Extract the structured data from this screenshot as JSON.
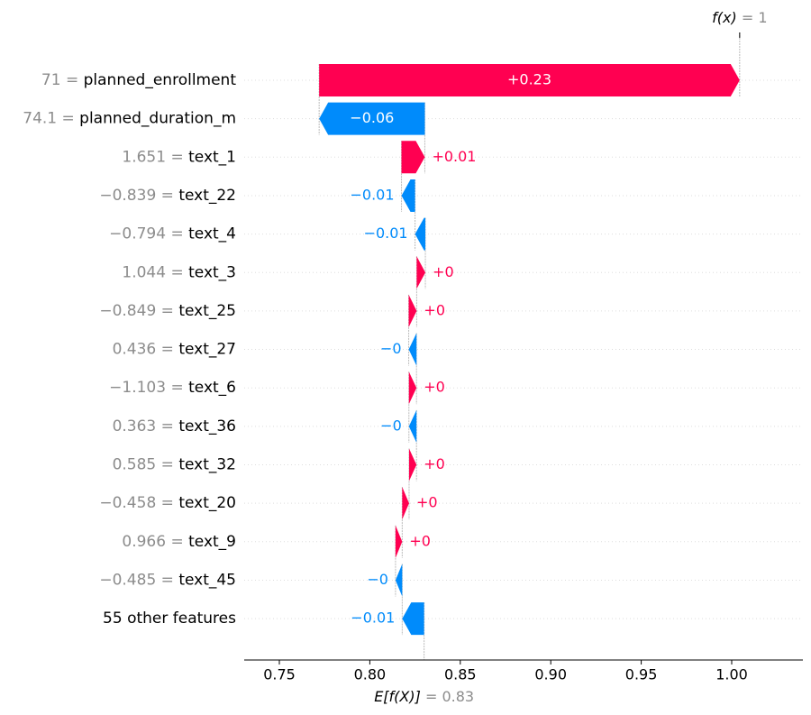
{
  "chart_data": {
    "type": "waterfall",
    "base_value": 0.83,
    "output_value": 1,
    "base_label": "E[f(X)]",
    "base_value_text": "= 0.83",
    "output_label": "f(x)",
    "output_value_text": "= 1",
    "xlim": [
      0.73,
      1.04
    ],
    "xticks": [
      0.75,
      0.8,
      0.85,
      0.9,
      0.95,
      1.0
    ],
    "xtick_labels": [
      "0.75",
      "0.80",
      "0.85",
      "0.90",
      "0.95",
      "1.00"
    ],
    "features": [
      {
        "value": "71",
        "name": "planned_enrollment",
        "shap": 0.2324,
        "label": "+0.23"
      },
      {
        "value": "74.1",
        "name": "planned_duration_m",
        "shap": -0.0584,
        "label": "−0.06"
      },
      {
        "value": "1.651",
        "name": "text_1",
        "shap": 0.0129,
        "label": "+0.01"
      },
      {
        "value": "−0.839",
        "name": "text_22",
        "shap": -0.0075,
        "label": "−0.01"
      },
      {
        "value": "−0.794",
        "name": "text_4",
        "shap": -0.0057,
        "label": "−0.01"
      },
      {
        "value": "1.044",
        "name": "text_3",
        "shap": 0.0048,
        "label": "+0"
      },
      {
        "value": "−0.849",
        "name": "text_25",
        "shap": 0.0044,
        "label": "+0"
      },
      {
        "value": "0.436",
        "name": "text_27",
        "shap": -0.0043,
        "label": "−0"
      },
      {
        "value": "−1.103",
        "name": "text_6",
        "shap": 0.0042,
        "label": "+0"
      },
      {
        "value": "0.363",
        "name": "text_36",
        "shap": -0.0042,
        "label": "−0"
      },
      {
        "value": "0.585",
        "name": "text_32",
        "shap": 0.0041,
        "label": "+0"
      },
      {
        "value": "−0.458",
        "name": "text_20",
        "shap": 0.0038,
        "label": "+0"
      },
      {
        "value": "0.966",
        "name": "text_9",
        "shap": 0.0037,
        "label": "+0"
      },
      {
        "value": "−0.485",
        "name": "text_45",
        "shap": -0.0037,
        "label": "−0"
      },
      {
        "value": "",
        "name": "55 other features",
        "shap": -0.0121,
        "label": "−0.01"
      }
    ],
    "colors": {
      "positive": "#ff0051",
      "negative": "#008bfb",
      "axis": "#000000",
      "muted": "#8c8c8c"
    }
  }
}
